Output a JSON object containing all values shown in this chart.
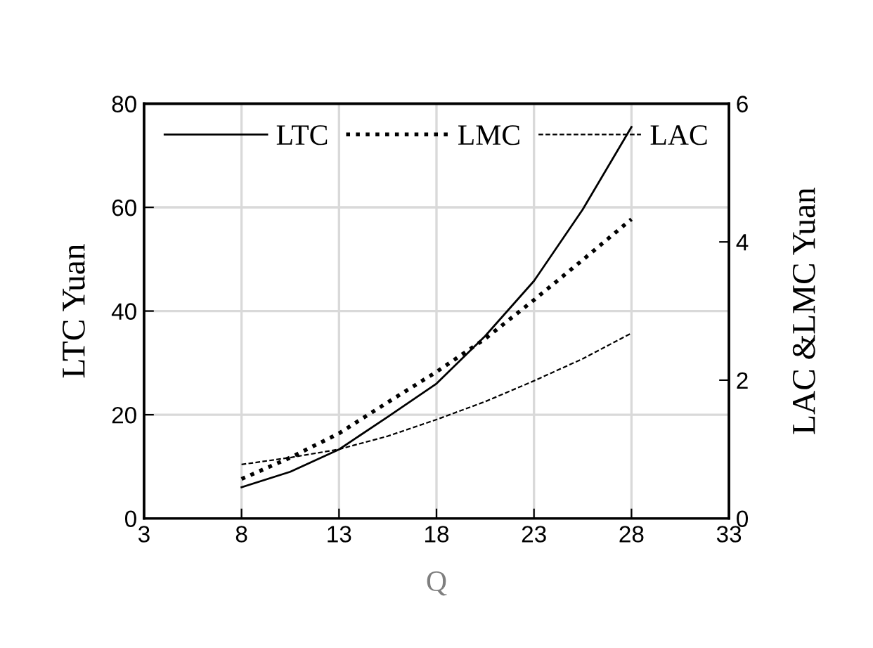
{
  "chart_data": {
    "type": "line",
    "xlabel": "Q",
    "ylabel": "LTC Yuan",
    "y2label": "LAC &LMC Yuan",
    "x": [
      8,
      10.5,
      13,
      15.5,
      18,
      20.5,
      23,
      25.5,
      28
    ],
    "series": [
      {
        "name": "LTC",
        "color": "#000000",
        "line_style": "solid",
        "values": [
          6.0,
          9.0,
          13.3,
          19.6,
          26,
          35.2,
          45.8,
          59.6,
          75.5
        ]
      },
      {
        "name": "LMC",
        "color": "#000000",
        "line_style": "dotted",
        "axis": "y2",
        "values": [
          0.57,
          0.88,
          1.23,
          1.68,
          2.12,
          2.6,
          3.16,
          3.74,
          4.33
        ]
      },
      {
        "name": "LAC",
        "color": "#000000",
        "line_style": "dashed",
        "axis": "y2",
        "values": [
          0.78,
          0.88,
          1.0,
          1.19,
          1.43,
          1.69,
          1.99,
          2.31,
          2.68
        ]
      }
    ],
    "xlim": [
      3,
      33
    ],
    "xticks": [
      3,
      8,
      13,
      18,
      23,
      28,
      33
    ],
    "ylim": [
      0,
      80
    ],
    "yticks": [
      0,
      20,
      40,
      60,
      80
    ],
    "y2lim": [
      0,
      6
    ],
    "y2ticks": [
      0,
      2,
      4,
      6
    ],
    "grid": true,
    "legend": "top",
    "marker": "none"
  }
}
